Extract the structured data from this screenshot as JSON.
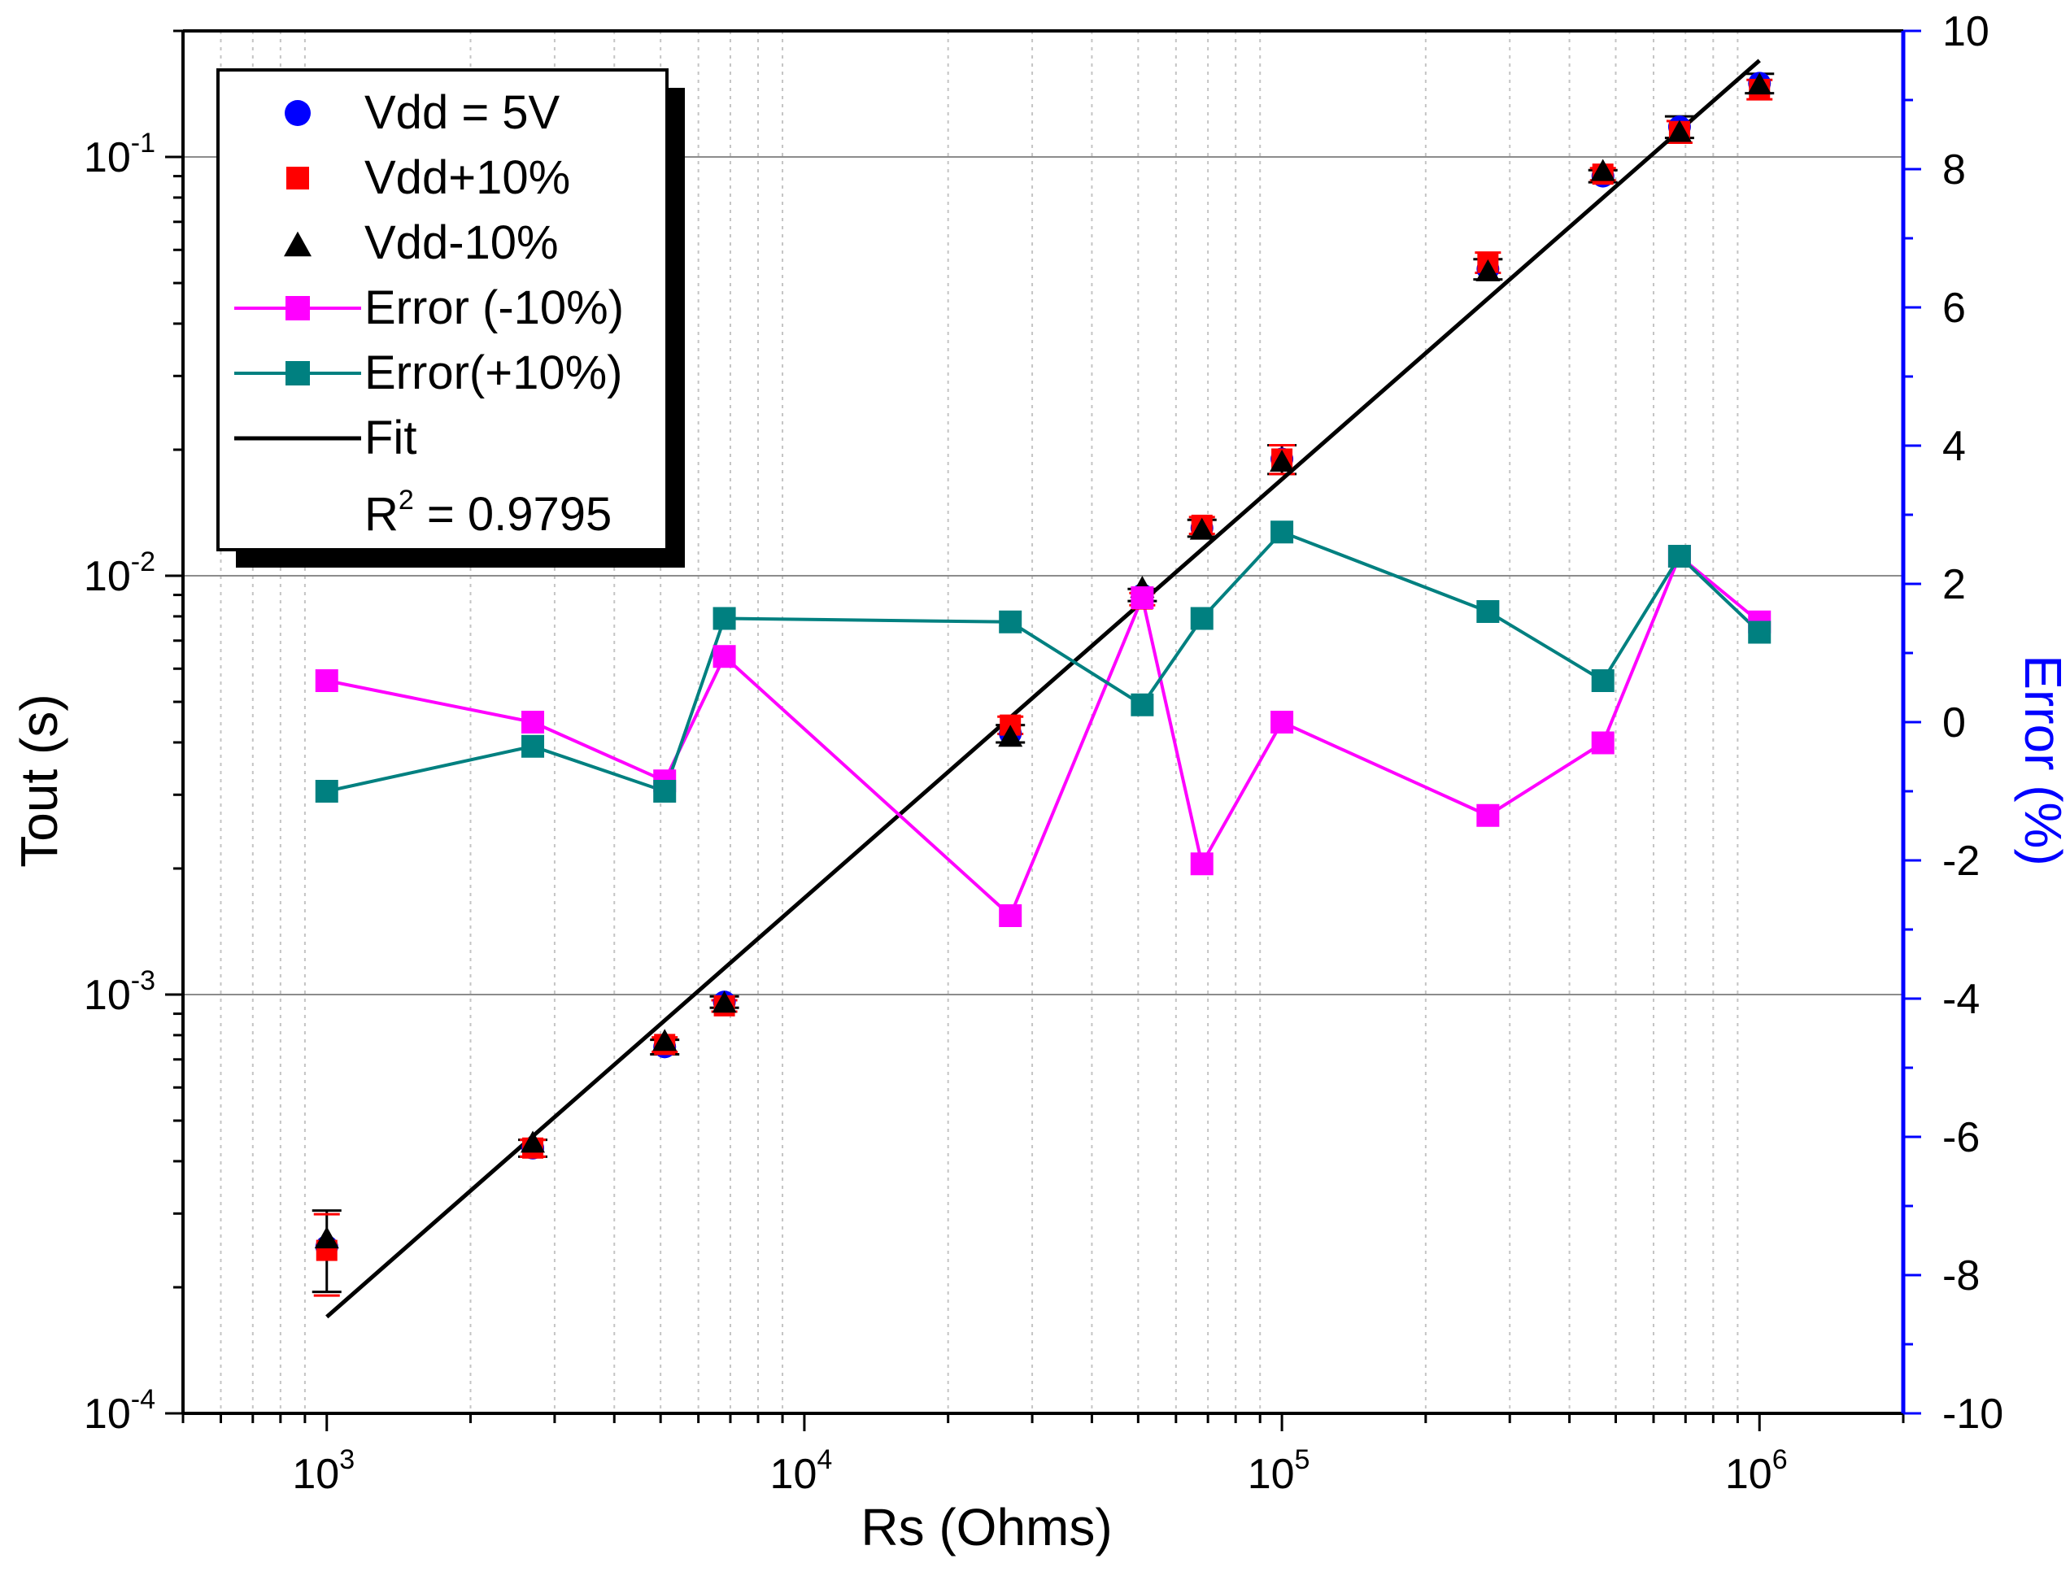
{
  "chart_data": {
    "type": "scatter",
    "xlabel": "Rs (Ohms)",
    "ylabel": "Tout (s)",
    "y2label": "Error (%)",
    "xscale": "log",
    "yscale": "log",
    "xlim": [
      500,
      2000000
    ],
    "ylim": [
      0.0001,
      0.2
    ],
    "y2lim": [
      -10,
      10
    ],
    "x_tick_labels": [
      {
        "base": "10",
        "exp": "3",
        "value": 1000
      },
      {
        "base": "10",
        "exp": "4",
        "value": 10000
      },
      {
        "base": "10",
        "exp": "5",
        "value": 100000
      },
      {
        "base": "10",
        "exp": "6",
        "value": 1000000
      }
    ],
    "y_tick_labels": [
      {
        "base": "10",
        "exp": "-4",
        "value": 0.0001
      },
      {
        "base": "10",
        "exp": "-3",
        "value": 0.001
      },
      {
        "base": "10",
        "exp": "-2",
        "value": 0.01
      },
      {
        "base": "10",
        "exp": "-1",
        "value": 0.1
      }
    ],
    "y2_ticks": [
      {
        "label": "-10",
        "value": -10
      },
      {
        "label": "-8",
        "value": -8
      },
      {
        "label": "-6",
        "value": -6
      },
      {
        "label": "-4",
        "value": -4
      },
      {
        "label": "-2",
        "value": -2
      },
      {
        "label": "0",
        "value": 0
      },
      {
        "label": "2",
        "value": 2
      },
      {
        "label": "4",
        "value": 4
      },
      {
        "label": "6",
        "value": 6
      },
      {
        "label": "8",
        "value": 8
      },
      {
        "label": "10",
        "value": 10
      }
    ],
    "x": [
      1000,
      2700,
      5100,
      6800,
      27000,
      51000,
      68000,
      100000,
      270000,
      470000,
      680000,
      1000000
    ],
    "series": [
      {
        "name": "Vdd = 5V",
        "axis": "left",
        "marker": "circle",
        "color": "#0000ff",
        "values": [
          0.00025,
          0.00043,
          0.00075,
          0.00096,
          0.0042,
          0.009,
          0.013,
          0.019,
          0.054,
          0.09,
          0.118,
          0.15
        ],
        "error": [
          5.5e-05,
          2e-05,
          3e-05,
          3e-05,
          0.0002,
          0.0003,
          0.0006,
          0.0015,
          0.003,
          0.003,
          0.007,
          0.008
        ]
      },
      {
        "name": "Vdd+10%",
        "axis": "left",
        "marker": "square",
        "color": "#ff0000",
        "values": [
          0.000245,
          0.00043,
          0.00076,
          0.00094,
          0.0044,
          0.0088,
          0.0132,
          0.019,
          0.056,
          0.091,
          0.115,
          0.145
        ]
      },
      {
        "name": "Vdd-10%",
        "axis": "left",
        "marker": "triangle",
        "color": "#000000",
        "values": [
          0.00026,
          0.00044,
          0.00077,
          0.00095,
          0.0041,
          0.0093,
          0.0128,
          0.0186,
          0.053,
          0.092,
          0.114,
          0.148
        ]
      },
      {
        "name": "Error (-10%)",
        "axis": "right",
        "marker": "square-line",
        "color": "#ff00ff",
        "values": [
          0.6,
          0.0,
          -0.85,
          0.95,
          -2.8,
          1.8,
          -2.05,
          0.0,
          -1.35,
          -0.3,
          2.4,
          1.45
        ]
      },
      {
        "name": "Error(+10%)",
        "axis": "right",
        "marker": "square-line",
        "color": "#008080",
        "values": [
          -1.0,
          -0.35,
          -1.0,
          1.5,
          1.45,
          0.25,
          1.5,
          2.75,
          1.6,
          0.6,
          2.4,
          1.3
        ]
      }
    ],
    "fit": {
      "name": "Fit",
      "color": "#000000",
      "x": [
        1000,
        1000000
      ],
      "values": [
        0.00017,
        0.17
      ]
    },
    "annotation": {
      "prefix": "R",
      "sup": "2",
      "suffix": " = 0.9795"
    },
    "legend": {
      "position": "top-left",
      "entries": [
        "Vdd = 5V",
        "Vdd+10%",
        "Vdd-10%",
        "Error (-10%)",
        "Error(+10%)",
        "Fit"
      ]
    },
    "grid": {
      "major_y": true,
      "minor_x": true
    }
  }
}
